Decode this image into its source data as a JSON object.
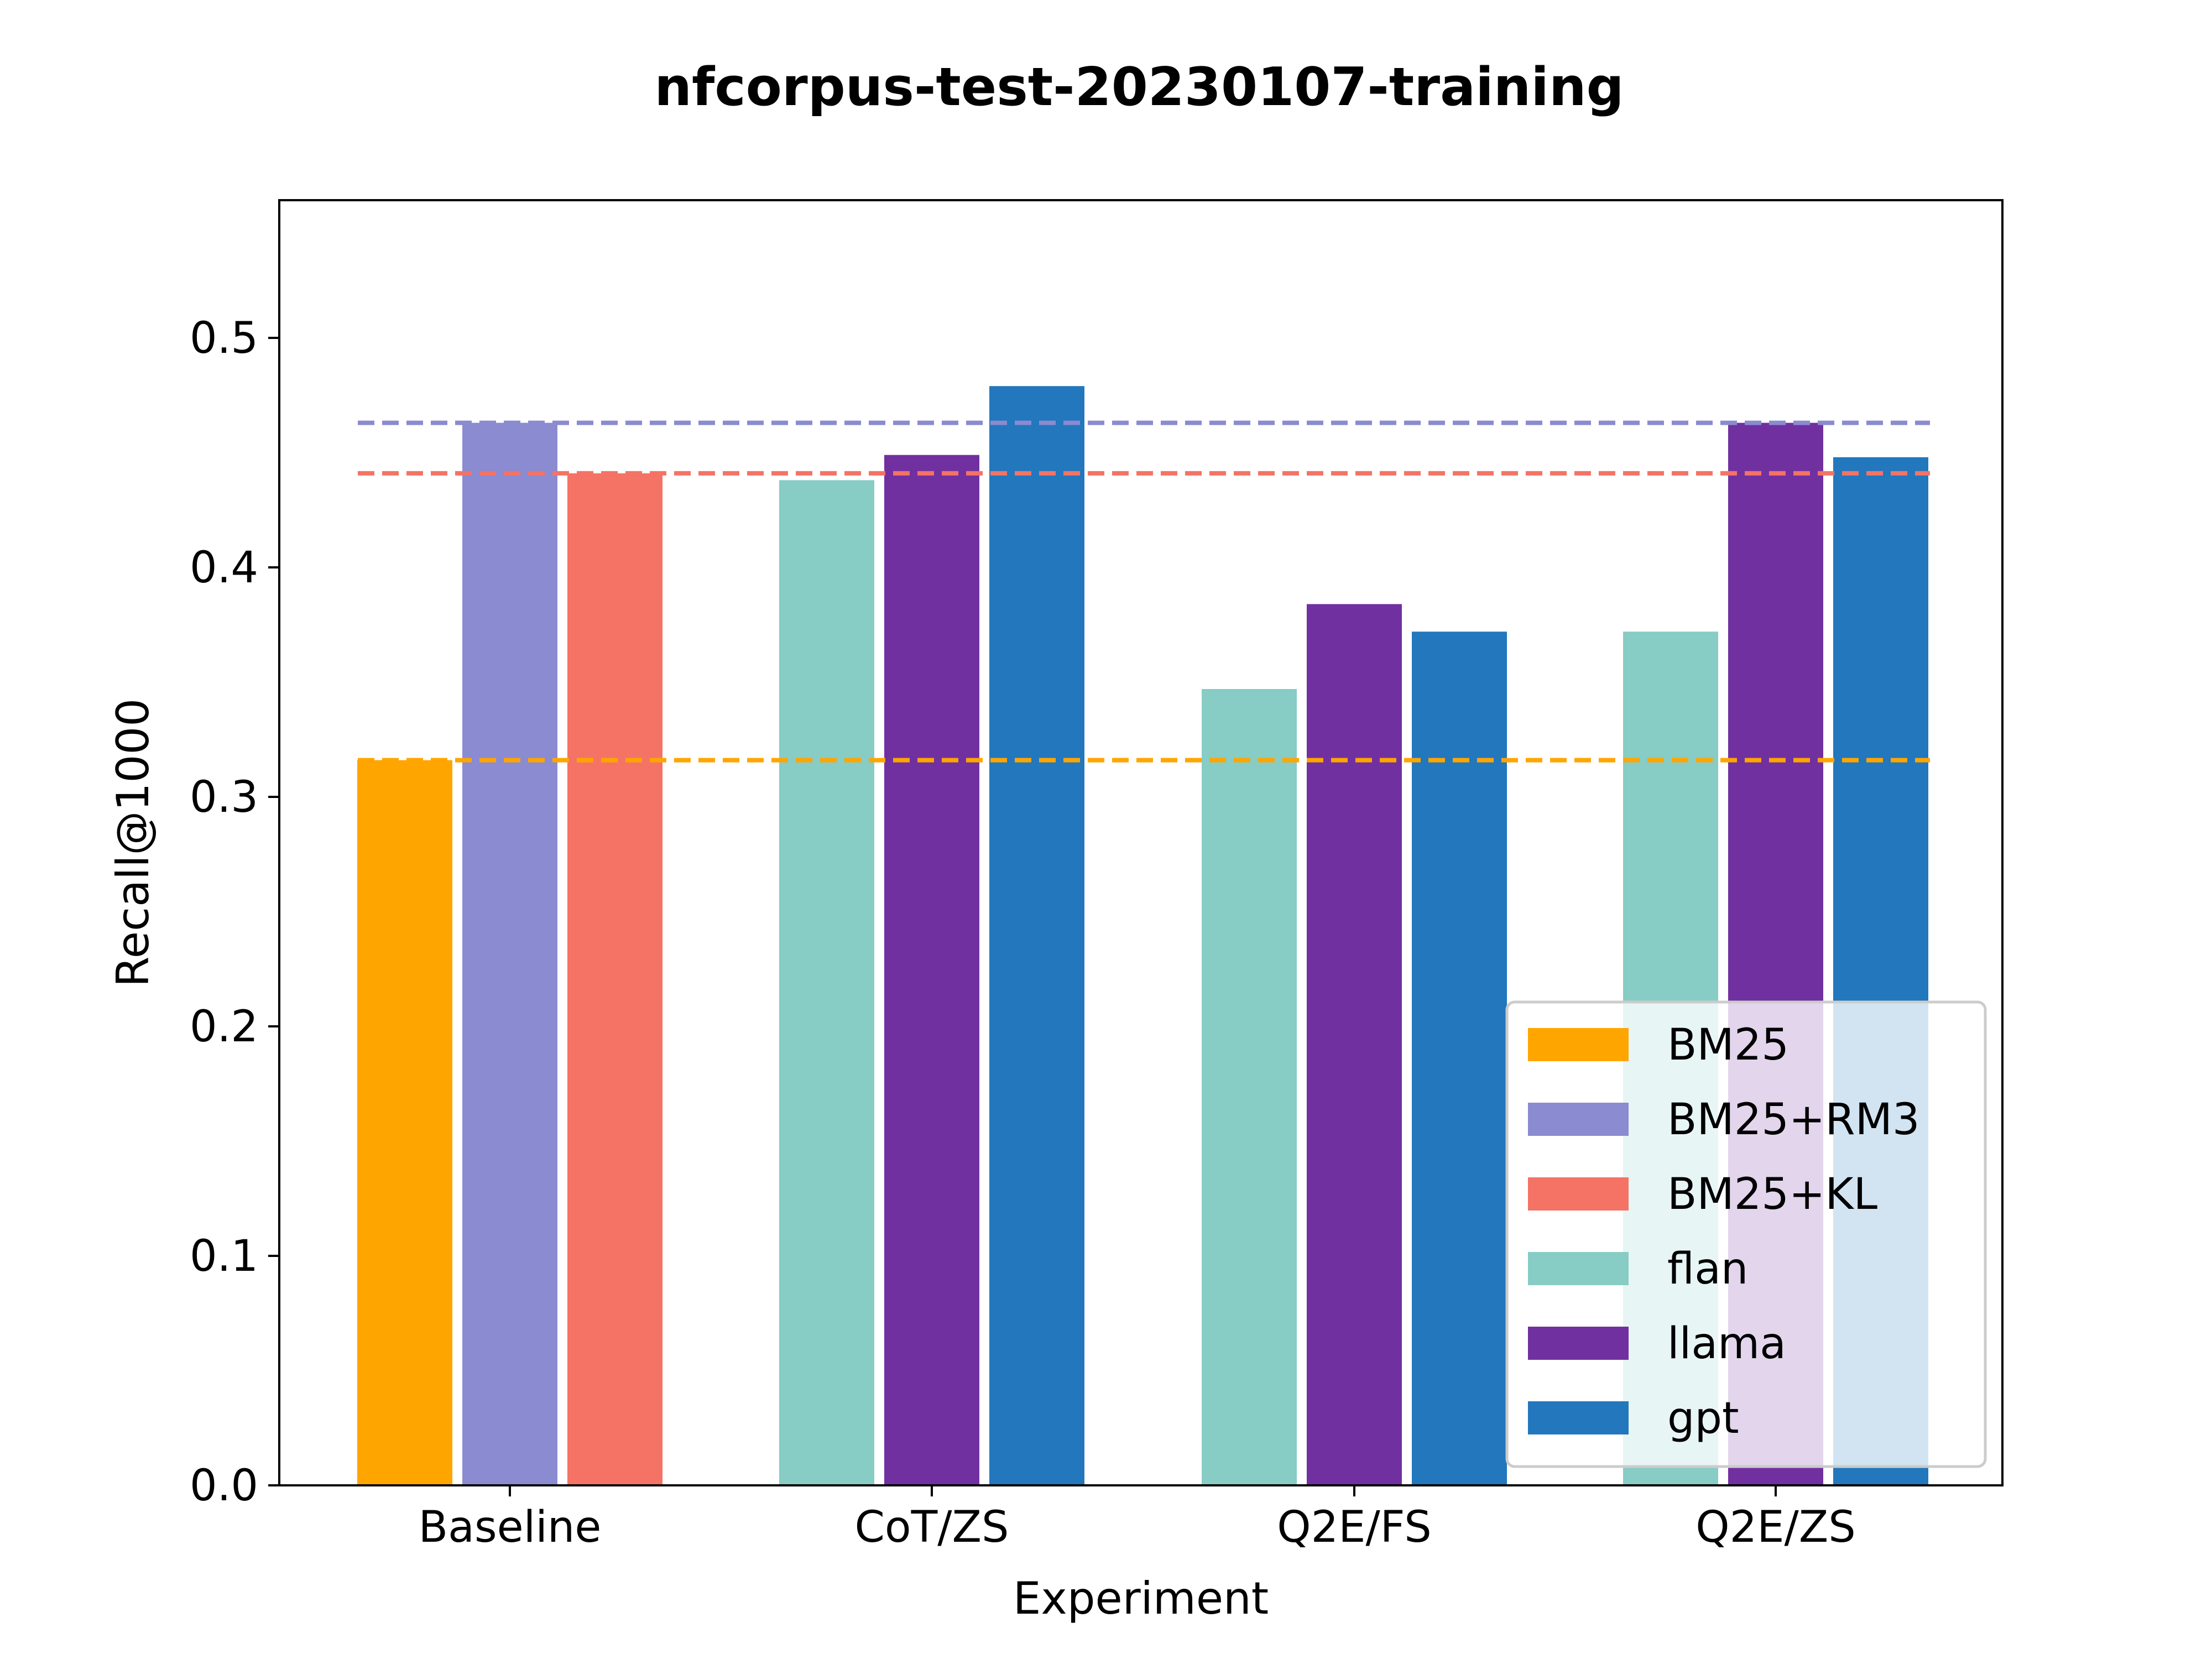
{
  "chart_data": {
    "type": "bar",
    "title": "nfcorpus-test-20230107-training",
    "xlabel": "Experiment",
    "ylabel": "Recall@1000",
    "ylim": [
      0,
      0.56
    ],
    "yticks": [
      "0.0",
      "0.1",
      "0.2",
      "0.3",
      "0.4",
      "0.5"
    ],
    "categories": [
      "Baseline",
      "CoT/ZS",
      "Q2E/FS",
      "Q2E/ZS"
    ],
    "grid": false,
    "legend_position": "bottom-right",
    "series": [
      {
        "name": "BM25",
        "color": "#FFA500",
        "values": [
          0.316,
          null,
          null,
          null
        ]
      },
      {
        "name": "BM25+RM3",
        "color": "#8A8BD0",
        "values": [
          0.463,
          null,
          null,
          null
        ]
      },
      {
        "name": "BM25+KL",
        "color": "#F47365",
        "values": [
          0.441,
          null,
          null,
          null
        ]
      },
      {
        "name": "flan",
        "color": "#87CCC5",
        "values": [
          null,
          0.438,
          0.347,
          0.372
        ]
      },
      {
        "name": "llama",
        "color": "#71309F",
        "values": [
          null,
          0.449,
          0.384,
          0.463
        ]
      },
      {
        "name": "gpt",
        "color": "#2277BD",
        "values": [
          null,
          0.479,
          0.372,
          0.448
        ]
      }
    ],
    "reference_lines": [
      {
        "series": "BM25",
        "value": 0.316,
        "color": "#FFA500"
      },
      {
        "series": "BM25+RM3",
        "value": 0.463,
        "color": "#8A8BD0"
      },
      {
        "series": "BM25+KL",
        "value": 0.441,
        "color": "#F47365"
      }
    ]
  }
}
